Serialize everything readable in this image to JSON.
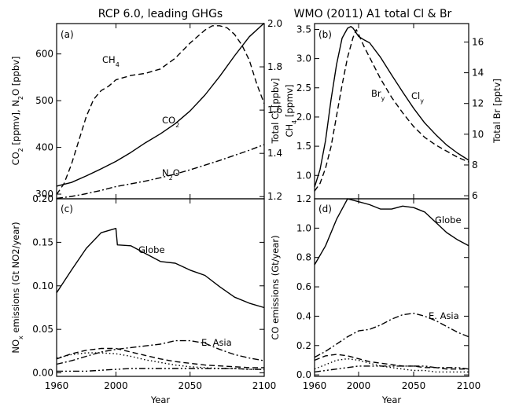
{
  "chart_data": [
    {
      "panel": "(a)",
      "type": "line",
      "title": "RCP 6.0, leading GHGs",
      "xlabel": "",
      "ylabel": "CO2 [ppmv], N2O [ppbv]",
      "ylabel_right": "CH4 [ppmv]",
      "xlim": [
        1960,
        2100
      ],
      "ylim": [
        290,
        665
      ],
      "ylim_right": [
        1.19,
        2.0
      ],
      "yticks": [
        300,
        400,
        500,
        600
      ],
      "yticks_right": [
        1.2,
        1.4,
        1.6,
        1.8,
        2.0
      ],
      "series": [
        {
          "name": "CO2",
          "axis": "left",
          "dash": "solid",
          "x": [
            1960,
            1970,
            1980,
            1990,
            2000,
            2010,
            2020,
            2030,
            2040,
            2050,
            2060,
            2070,
            2080,
            2090,
            2100
          ],
          "y": [
            317,
            325,
            339,
            354,
            370,
            389,
            410,
            429,
            451,
            478,
            512,
            552,
            596,
            637,
            666
          ]
        },
        {
          "name": "CH4",
          "axis": "right",
          "dash": "dashed",
          "x": [
            1960,
            1965,
            1970,
            1975,
            1980,
            1985,
            1990,
            1995,
            2000,
            2005,
            2010,
            2020,
            2030,
            2040,
            2050,
            2060,
            2065,
            2070,
            2075,
            2080,
            2085,
            2090,
            2095,
            2100
          ],
          "y": [
            1.21,
            1.26,
            1.35,
            1.46,
            1.57,
            1.65,
            1.69,
            1.71,
            1.74,
            1.75,
            1.76,
            1.77,
            1.79,
            1.84,
            1.91,
            1.97,
            1.99,
            1.99,
            1.98,
            1.95,
            1.9,
            1.83,
            1.72,
            1.63
          ]
        },
        {
          "name": "N2O",
          "axis": "left",
          "dash": "dashdot",
          "x": [
            1960,
            1970,
            1980,
            1990,
            2000,
            2010,
            2020,
            2030,
            2040,
            2050,
            2060,
            2070,
            2080,
            2090,
            2100
          ],
          "y": [
            291,
            295,
            301,
            308,
            316,
            322,
            328,
            335,
            343,
            352,
            362,
            372,
            383,
            394,
            406
          ]
        }
      ],
      "labels": {
        "co2": "CO",
        "ch4": "CH",
        "n2o": "N",
        "n2o_rest": "O",
        "sub2": "2",
        "sub4": "4"
      }
    },
    {
      "panel": "(b)",
      "type": "line",
      "title": "WMO (2011) A1 total Cl & Br",
      "xlabel": "",
      "ylabel": "Total Cl [ppbv]",
      "ylabel_right": "Total Br [pptv]",
      "xlim": [
        1960,
        2100
      ],
      "ylim": [
        0.6,
        3.6
      ],
      "ylim_right": [
        5.8,
        17.2
      ],
      "yticks": [
        1.0,
        1.5,
        2.0,
        2.5,
        3.0,
        3.5
      ],
      "yticks_right": [
        6,
        8,
        10,
        12,
        14,
        16
      ],
      "series": [
        {
          "name": "Cly",
          "axis": "left",
          "dash": "solid",
          "x": [
            1960,
            1965,
            1970,
            1975,
            1980,
            1985,
            1990,
            1993,
            1995,
            2000,
            2005,
            2010,
            2020,
            2030,
            2040,
            2050,
            2060,
            2070,
            2080,
            2090,
            2100
          ],
          "y": [
            0.8,
            1.1,
            1.6,
            2.3,
            2.9,
            3.35,
            3.52,
            3.55,
            3.52,
            3.38,
            3.32,
            3.27,
            3.02,
            2.72,
            2.43,
            2.15,
            1.9,
            1.7,
            1.52,
            1.38,
            1.26
          ]
        },
        {
          "name": "Bry",
          "axis": "right",
          "dash": "dashed",
          "x": [
            1960,
            1965,
            1970,
            1975,
            1980,
            1985,
            1990,
            1995,
            1998,
            2000,
            2005,
            2010,
            2020,
            2030,
            2040,
            2050,
            2060,
            2070,
            2080,
            2090,
            2100
          ],
          "y": [
            6.3,
            6.8,
            7.8,
            9.2,
            11.2,
            13.2,
            15.0,
            16.3,
            16.8,
            16.5,
            15.7,
            15.0,
            13.6,
            12.4,
            11.4,
            10.5,
            9.8,
            9.3,
            8.9,
            8.5,
            8.2
          ]
        }
      ],
      "labels": {
        "cly": "Cl",
        "bry": "Br",
        "suby": "y"
      }
    },
    {
      "panel": "(c)",
      "type": "line",
      "title": "",
      "xlabel": "Year",
      "ylabel": "NOx emissions (Gt NO2/year)",
      "xlim": [
        1960,
        2100
      ],
      "ylim": [
        -0.004,
        0.2
      ],
      "yticks": [
        0.0,
        0.05,
        0.1,
        0.15,
        0.2
      ],
      "xticks": [
        1960,
        2000,
        2050,
        2100
      ],
      "series": [
        {
          "name": "Globe",
          "dash": "solid",
          "x": [
            1960,
            1970,
            1980,
            1990,
            2000,
            2001,
            2010,
            2020,
            2030,
            2040,
            2050,
            2060,
            2070,
            2080,
            2090,
            2100
          ],
          "y": [
            0.092,
            0.118,
            0.143,
            0.161,
            0.166,
            0.147,
            0.146,
            0.137,
            0.128,
            0.126,
            0.118,
            0.112,
            0.099,
            0.087,
            0.08,
            0.075
          ]
        },
        {
          "name": "E. Asia",
          "dash": "dashdot",
          "x": [
            1960,
            1970,
            1980,
            1990,
            2000,
            2010,
            2020,
            2030,
            2040,
            2050,
            2060,
            2070,
            2080,
            2090,
            2100
          ],
          "y": [
            0.01,
            0.014,
            0.019,
            0.024,
            0.027,
            0.029,
            0.031,
            0.033,
            0.037,
            0.037,
            0.034,
            0.027,
            0.021,
            0.017,
            0.014
          ]
        },
        {
          "name": "",
          "dash": "dashed",
          "x": [
            1960,
            1970,
            1980,
            1990,
            2000,
            2010,
            2020,
            2030,
            2040,
            2050,
            2060,
            2070,
            2080,
            2090,
            2100
          ],
          "y": [
            0.016,
            0.022,
            0.026,
            0.028,
            0.028,
            0.024,
            0.02,
            0.016,
            0.013,
            0.011,
            0.009,
            0.008,
            0.007,
            0.006,
            0.006
          ]
        },
        {
          "name": "",
          "dash": "dotted",
          "x": [
            1960,
            1970,
            1980,
            1990,
            2000,
            2010,
            2020,
            2030,
            2040,
            2050,
            2060,
            2070,
            2080,
            2090,
            2100
          ],
          "y": [
            0.017,
            0.021,
            0.023,
            0.023,
            0.022,
            0.019,
            0.015,
            0.012,
            0.009,
            0.007,
            0.006,
            0.005,
            0.005,
            0.004,
            0.004
          ]
        },
        {
          "name": "",
          "dash": "dashdotdot",
          "x": [
            1960,
            1970,
            1980,
            1990,
            2000,
            2010,
            2020,
            2030,
            2040,
            2050,
            2060,
            2070,
            2080,
            2090,
            2100
          ],
          "y": [
            0.002,
            0.002,
            0.002,
            0.003,
            0.004,
            0.005,
            0.005,
            0.005,
            0.005,
            0.005,
            0.005,
            0.005,
            0.005,
            0.004,
            0.004
          ]
        }
      ],
      "labels": {
        "no": "NO",
        "subx": "x",
        "no_rest": " emissions (Gt NO2/year)"
      }
    },
    {
      "panel": "(d)",
      "type": "line",
      "title": "",
      "xlabel": "Year",
      "ylabel": "CO emissions (Gt/year)",
      "xlim": [
        1960,
        2100
      ],
      "ylim": [
        -0.01,
        1.2
      ],
      "yticks": [
        0.0,
        0.2,
        0.4,
        0.6,
        0.8,
        1.0,
        1.2
      ],
      "xticks": [
        1960,
        2000,
        2050,
        2100
      ],
      "series": [
        {
          "name": "Globe",
          "dash": "solid",
          "x": [
            1960,
            1970,
            1980,
            1990,
            2000,
            2010,
            2020,
            2030,
            2040,
            2050,
            2060,
            2070,
            2080,
            2090,
            2100
          ],
          "y": [
            0.75,
            0.88,
            1.06,
            1.2,
            1.18,
            1.16,
            1.13,
            1.13,
            1.15,
            1.14,
            1.11,
            1.04,
            0.97,
            0.92,
            0.88
          ]
        },
        {
          "name": "E. Asia",
          "dash": "dashdot",
          "x": [
            1960,
            1970,
            1980,
            1990,
            2000,
            2010,
            2020,
            2030,
            2040,
            2050,
            2060,
            2070,
            2080,
            2090,
            2100
          ],
          "y": [
            0.12,
            0.16,
            0.21,
            0.26,
            0.3,
            0.31,
            0.34,
            0.38,
            0.41,
            0.42,
            0.4,
            0.37,
            0.33,
            0.29,
            0.26
          ]
        },
        {
          "name": "",
          "dash": "dashed",
          "x": [
            1960,
            1970,
            1980,
            1990,
            2000,
            2010,
            2020,
            2030,
            2040,
            2050,
            2060,
            2070,
            2080,
            2090,
            2100
          ],
          "y": [
            0.1,
            0.13,
            0.14,
            0.13,
            0.11,
            0.09,
            0.08,
            0.07,
            0.06,
            0.06,
            0.05,
            0.05,
            0.04,
            0.04,
            0.04
          ]
        },
        {
          "name": "",
          "dash": "dotted",
          "x": [
            1960,
            1970,
            1980,
            1990,
            2000,
            2010,
            2020,
            2030,
            2040,
            2050,
            2060,
            2070,
            2080,
            2090,
            2100
          ],
          "y": [
            0.04,
            0.07,
            0.1,
            0.11,
            0.1,
            0.08,
            0.06,
            0.05,
            0.04,
            0.03,
            0.03,
            0.02,
            0.02,
            0.02,
            0.02
          ]
        },
        {
          "name": "",
          "dash": "dashdotdot",
          "x": [
            1960,
            1970,
            1980,
            1990,
            2000,
            2010,
            2020,
            2030,
            2040,
            2050,
            2060,
            2070,
            2080,
            2090,
            2100
          ],
          "y": [
            0.02,
            0.03,
            0.04,
            0.05,
            0.06,
            0.06,
            0.06,
            0.06,
            0.06,
            0.06,
            0.06,
            0.05,
            0.05,
            0.05,
            0.04
          ]
        }
      ]
    }
  ]
}
